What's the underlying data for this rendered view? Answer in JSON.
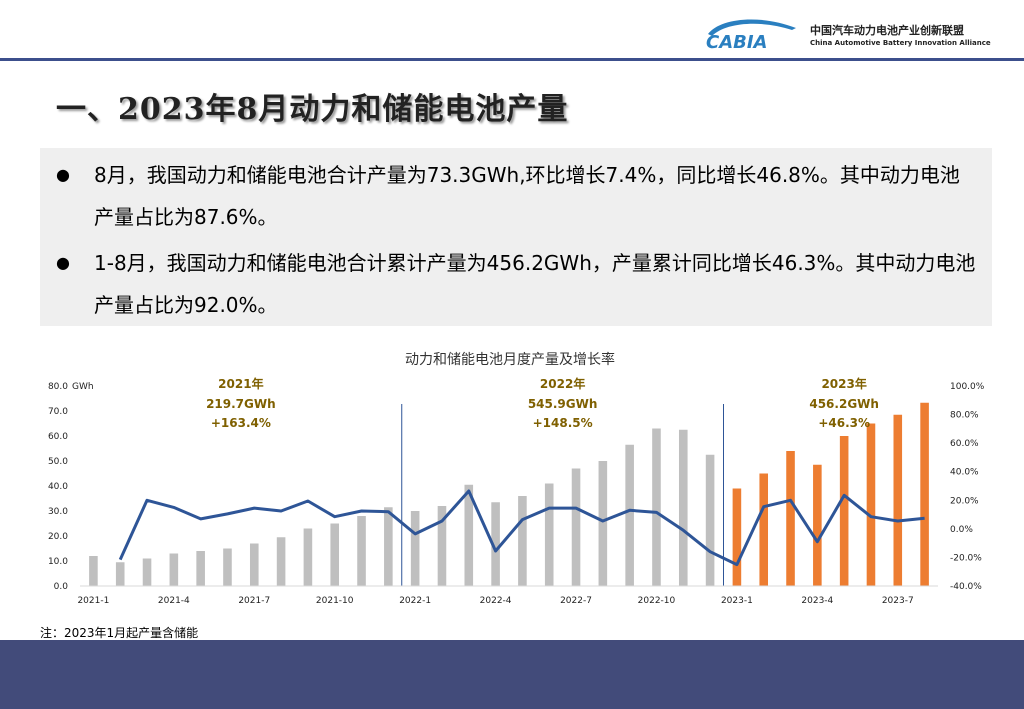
{
  "header": {
    "logo_text": "CABIA",
    "org_cn": "中国汽车动力电池产业创新联盟",
    "org_en": "China Automotive Battery Innovation Alliance"
  },
  "page_title": "一、2023年8月动力和储能电池产量",
  "summary": {
    "bullet_1": "8月，我国动力和储能电池合计产量为73.3GWh,环比增长7.4%，同比增长46.8%。其中动力电池产量占比为87.6%。",
    "bullet_2": "1-8月，我国动力和储能电池合计累计产量为456.2GWh，产量累计同比增长46.3%。其中动力电池产量占比为92.0%。"
  },
  "note": "注：2023年1月起产量含储能",
  "colors": {
    "bar_2021_2022": "#bfbfbf",
    "bar_2023": "#ed7d31",
    "line": "#2e5597",
    "divider": "#2e5597",
    "annotation_2021_2022": "#7f6000",
    "annotation_2023": "#7f6000",
    "bottom_bar": "#424b7a"
  },
  "chart_data": {
    "type": "bar+line",
    "title": "动力和储能电池月度产量及增长率",
    "y_left_unit": "GWh",
    "y_left_ticks": [
      "0.0",
      "10.0",
      "20.0",
      "30.0",
      "40.0",
      "50.0",
      "60.0",
      "70.0",
      "80.0"
    ],
    "y_left_range": [
      0,
      80
    ],
    "y_right_ticks": [
      "-40.0%",
      "-20.0%",
      "0.0%",
      "20.0%",
      "40.0%",
      "60.0%",
      "80.0%",
      "100.0%"
    ],
    "y_right_range": [
      -40,
      100
    ],
    "x_tick_labels": [
      "2021-1",
      "2021-4",
      "2021-7",
      "2021-10",
      "2022-1",
      "2022-4",
      "2022-7",
      "2022-10",
      "2023-1",
      "2023-4",
      "2023-7"
    ],
    "categories": [
      "2021-1",
      "2021-2",
      "2021-3",
      "2021-4",
      "2021-5",
      "2021-6",
      "2021-7",
      "2021-8",
      "2021-9",
      "2021-10",
      "2021-11",
      "2021-12",
      "2022-1",
      "2022-2",
      "2022-3",
      "2022-4",
      "2022-5",
      "2022-6",
      "2022-7",
      "2022-8",
      "2022-9",
      "2022-10",
      "2022-11",
      "2022-12",
      "2023-1",
      "2023-2",
      "2023-3",
      "2023-4",
      "2023-5",
      "2023-6",
      "2023-7",
      "2023-8"
    ],
    "series": [
      {
        "type": "bar",
        "values": [
          12.0,
          9.5,
          11.0,
          13.0,
          14.0,
          15.0,
          17.0,
          19.5,
          23.0,
          25.0,
          28.0,
          31.5,
          30.0,
          32.0,
          40.5,
          33.5,
          36.0,
          41.0,
          47.0,
          50.0,
          56.5,
          63.0,
          62.5,
          52.5,
          39.0,
          45.0,
          54.0,
          48.5,
          60.0,
          65.0,
          68.5,
          73.3
        ]
      },
      {
        "type": "line",
        "values": [
          null,
          -21.5,
          20.0,
          15.0,
          7.0,
          10.5,
          14.5,
          12.5,
          19.5,
          8.5,
          12.5,
          12.0,
          -3.5,
          5.5,
          26.5,
          -15.5,
          6.5,
          14.5,
          14.5,
          5.5,
          13.0,
          11.5,
          -1.0,
          -16.0,
          -25.0,
          15.5,
          20.0,
          -9.0,
          23.5,
          8.5,
          5.5,
          7.4
        ]
      }
    ],
    "period_annotations": [
      {
        "year": "2021年",
        "total": "219.7GWh",
        "growth": "+163.4%"
      },
      {
        "year": "2022年",
        "total": "545.9GWh",
        "growth": "+148.5%"
      },
      {
        "year": "2023年",
        "total": "456.2GWh",
        "growth": "+46.3%"
      }
    ]
  }
}
